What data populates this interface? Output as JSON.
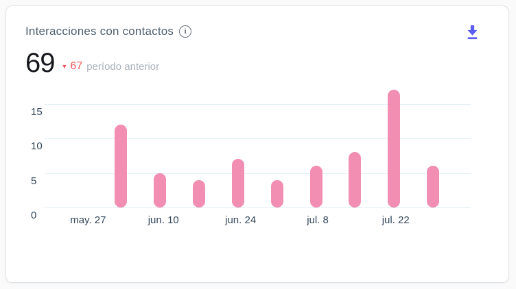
{
  "card": {
    "title": "Interacciones con contactos",
    "info_glyph": "i",
    "total": "69",
    "delta": {
      "arrow": "▼",
      "value": "67",
      "label": "período anterior"
    }
  },
  "chart_data": {
    "type": "bar",
    "title": "Interacciones con contactos",
    "values": [
      12,
      5,
      4,
      7,
      4,
      6,
      8,
      17,
      6
    ],
    "total": 69,
    "previous_period": 67,
    "x_tick_labels": [
      "may. 27",
      "jun. 10",
      "jun. 24",
      "jul. 8",
      "jul. 22"
    ],
    "y_ticks": [
      0,
      5,
      10,
      15
    ],
    "ylim": [
      0,
      18
    ],
    "grid": true,
    "legend": false,
    "bar_color": "#f28eb1"
  },
  "colors": {
    "bar_pink": "#f28eb1",
    "accent_red": "#f2545b",
    "download_blue": "#5a5df0",
    "tick_text": "#33475b",
    "muted_text": "#aab2bb",
    "gridline": "#e3f1f8"
  }
}
